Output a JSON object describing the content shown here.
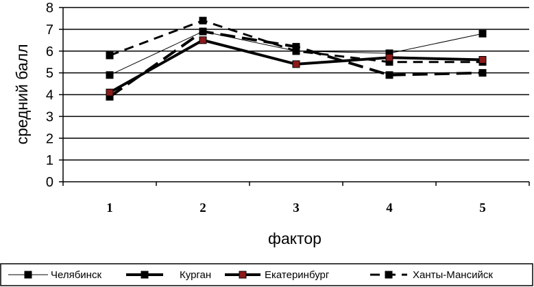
{
  "chart_data": {
    "type": "line",
    "title": "",
    "xlabel": "фактор",
    "ylabel": "средний балл",
    "categories": [
      "1",
      "2",
      "3",
      "4",
      "5"
    ],
    "ylim": [
      0,
      8
    ],
    "yticks": [
      "0",
      "1",
      "2",
      "3",
      "4",
      "5",
      "6",
      "7",
      "8"
    ],
    "grid": "horizontal",
    "legend_position": "bottom",
    "series": [
      {
        "name": "Челябинск",
        "values": [
          4.9,
          6.9,
          6.0,
          5.9,
          6.8
        ],
        "color": "#000000",
        "marker_color": "#000000",
        "line_style": "thin"
      },
      {
        "name": "Курган",
        "values": [
          3.9,
          6.9,
          6.2,
          4.9,
          5.0
        ],
        "color": "#000000",
        "marker_color": "#000000",
        "line_style": "thick-dash"
      },
      {
        "name": "Екатеринбург",
        "values": [
          4.1,
          6.5,
          5.4,
          5.7,
          5.6
        ],
        "color": "#000000",
        "marker_color": "#8b1a1a",
        "line_style": "thick"
      },
      {
        "name": "Ханты-Мансийск",
        "values": [
          5.8,
          7.4,
          6.0,
          5.5,
          5.5
        ],
        "color": "#000000",
        "marker_color": "#000000",
        "line_style": "medium-dash"
      }
    ]
  }
}
